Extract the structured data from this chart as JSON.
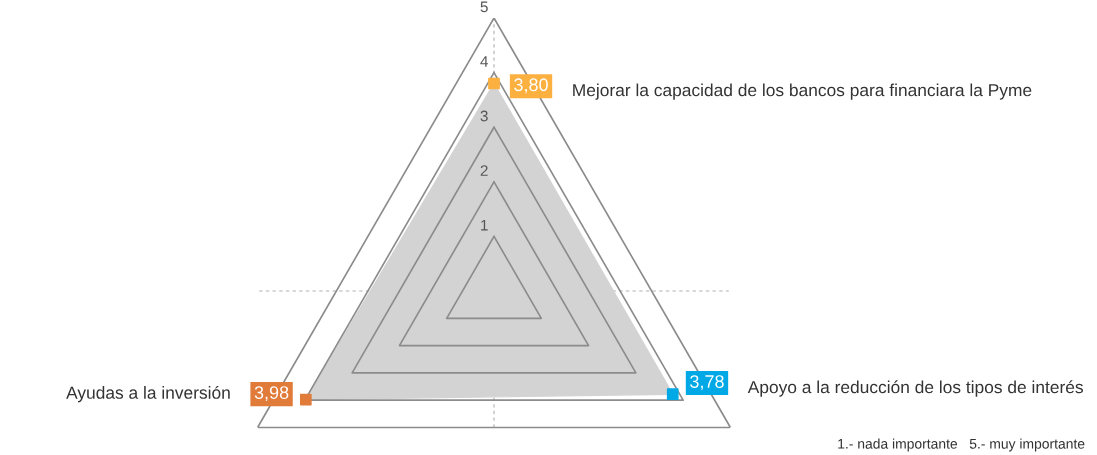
{
  "chart_data": {
    "type": "radar",
    "categories": [
      "Mejorar la capacidad de los bancos para financiara la Pyme",
      "Apoyo a la reducción de los tipos de interés",
      "Ayudas a la inversión"
    ],
    "series": [
      {
        "color": "#d3d3d4",
        "values": [
          3.8,
          3.78,
          3.98
        ],
        "colors": [
          "#fbb040",
          "#00a9e6",
          "#e07b39"
        ],
        "value_labels": [
          "3,80",
          "3,78",
          "3,98"
        ]
      }
    ],
    "ylim": [
      0,
      5
    ],
    "yticks": [
      1,
      2,
      3,
      4,
      5
    ],
    "grid": true,
    "marker": "square",
    "annotations": [
      "1.- nada importante   5.- muy importante"
    ]
  }
}
